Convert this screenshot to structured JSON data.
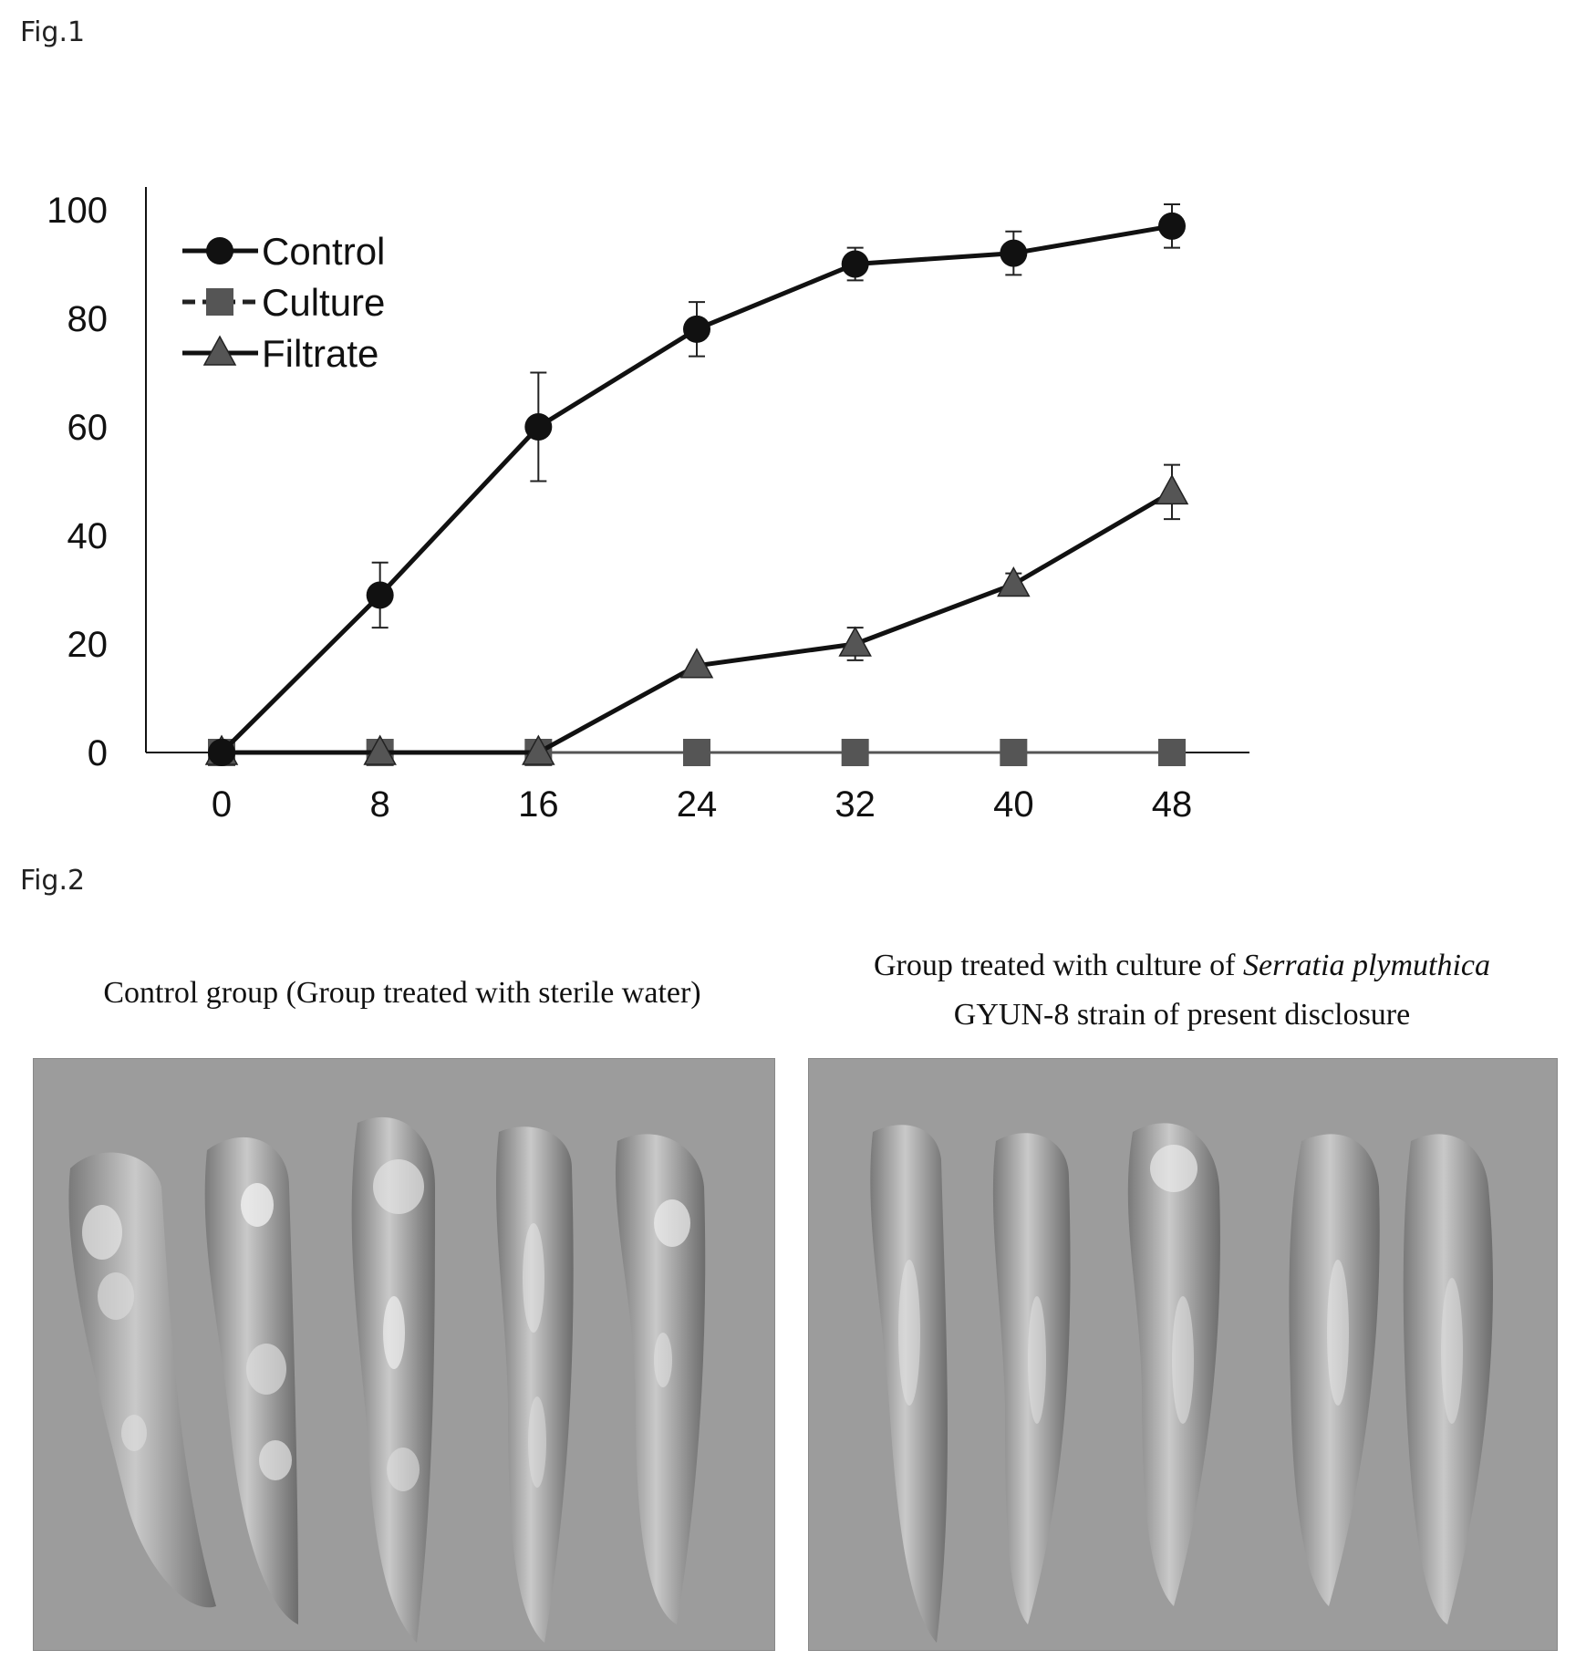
{
  "figure1": {
    "label": "Fig.1",
    "chart_data": {
      "type": "line",
      "x": [
        0,
        8,
        16,
        24,
        32,
        40,
        48
      ],
      "xlim": [
        0,
        48
      ],
      "ylim": [
        0,
        100
      ],
      "yticks": [
        0,
        20,
        40,
        60,
        80,
        100
      ],
      "xlabel": "",
      "ylabel": "",
      "grid": false,
      "legend_position": "top-left",
      "series": [
        {
          "name": "Control",
          "marker": "circle",
          "color": "#111111",
          "values": [
            0,
            29,
            60,
            78,
            90,
            92,
            97
          ],
          "errors": [
            0,
            6,
            10,
            5,
            3,
            4,
            4
          ]
        },
        {
          "name": "Culture",
          "marker": "square",
          "color": "#555555",
          "values": [
            0,
            0,
            0,
            0,
            0,
            0,
            0
          ],
          "errors": [
            0,
            0,
            0,
            0,
            0,
            0,
            0
          ]
        },
        {
          "name": "Filtrate",
          "marker": "triangle",
          "color": "#555555",
          "values": [
            0,
            0,
            0,
            16,
            20,
            31,
            48
          ],
          "errors": [
            0,
            0,
            0,
            0,
            3,
            2,
            5
          ]
        }
      ]
    }
  },
  "figure2": {
    "label": "Fig.2",
    "left_caption": "Control group (Group treated with sterile water)",
    "right_caption_line1_prefix": "Group treated with culture of ",
    "right_caption_line1_italic": "Serratia plymuthica",
    "right_caption_line2": "GYUN-8 strain of present disclosure"
  }
}
